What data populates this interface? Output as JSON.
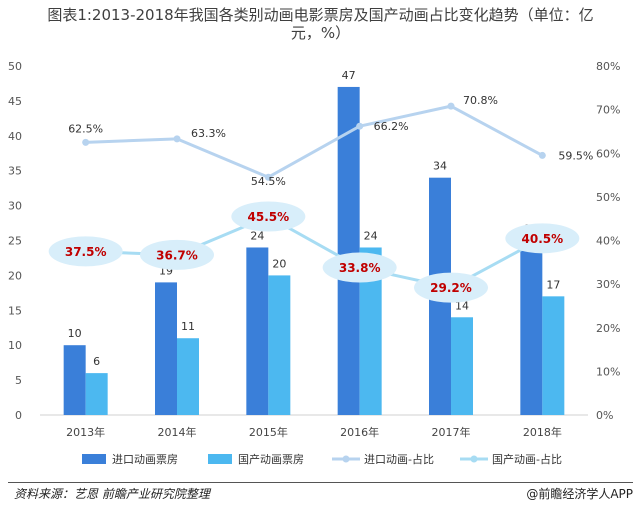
{
  "title": {
    "line1": "图表1:2013-2018年我国各类别动画电影票房及国产动画占比变化趋势（单位：亿",
    "line2": "元，%）"
  },
  "source": "资料来源：艺恩 前瞻产业研究院整理",
  "brand": "@前瞻经济学人APP",
  "colors": {
    "bar_import": "#3a7fd9",
    "bar_domestic": "#4cb8f0",
    "line_import": "#b7d3ef",
    "line_domestic": "#a7dcf3",
    "bubble": "#d8eefa",
    "bubble_text": "#c00000"
  },
  "chart_data": {
    "type": "bar+line",
    "categories": [
      "2013年",
      "2014年",
      "2015年",
      "2016年",
      "2017年",
      "2018年"
    ],
    "series": [
      {
        "name": "进口动画票房",
        "type": "bar",
        "axis": "left",
        "values": [
          10,
          19,
          24,
          47,
          34,
          25
        ]
      },
      {
        "name": "国产动画票房",
        "type": "bar",
        "axis": "left",
        "values": [
          6,
          11,
          20,
          24,
          14,
          17
        ]
      },
      {
        "name": "进口动画-占比",
        "type": "line",
        "axis": "right",
        "values": [
          62.5,
          63.3,
          54.5,
          66.2,
          70.8,
          59.5
        ],
        "labels": [
          "62.5%",
          "63.3%",
          "54.5%",
          "66.2%",
          "70.8%",
          "59.5%"
        ]
      },
      {
        "name": "国产动画-占比",
        "type": "line",
        "axis": "right",
        "values": [
          37.5,
          36.7,
          45.5,
          33.8,
          29.2,
          40.5
        ],
        "labels": [
          "37.5%",
          "36.7%",
          "45.5%",
          "33.8%",
          "29.2%",
          "40.5%"
        ]
      }
    ],
    "y_left": {
      "min": 0,
      "max": 50,
      "ticks": [
        0,
        5,
        10,
        15,
        20,
        25,
        30,
        35,
        40,
        45,
        50
      ]
    },
    "y_right": {
      "min": 0,
      "max": 80,
      "ticks": [
        "0%",
        "10%",
        "20%",
        "30%",
        "40%",
        "50%",
        "60%",
        "70%",
        "80%"
      ]
    },
    "legend_position": "bottom"
  }
}
